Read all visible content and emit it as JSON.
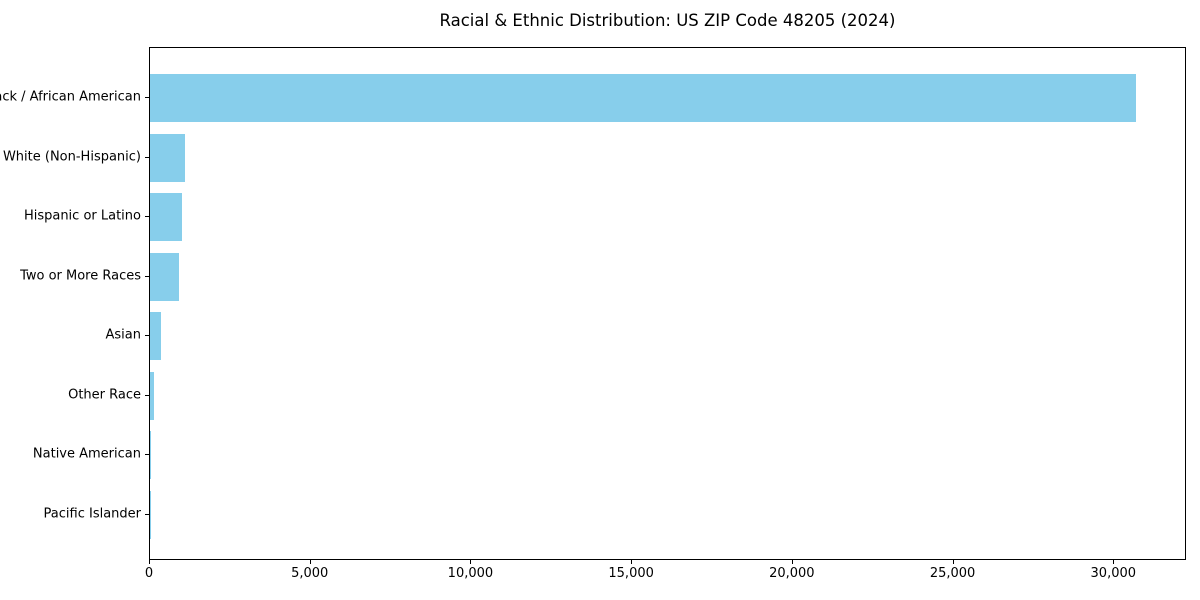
{
  "chart_data": {
    "type": "bar",
    "orientation": "horizontal",
    "title": "Racial & Ethnic Distribution: US ZIP Code 48205 (2024)",
    "categories": [
      "Black / African American",
      "White (Non-Hispanic)",
      "Hispanic or Latino",
      "Two or More Races",
      "Asian",
      "Other Race",
      "Native American",
      "Pacific Islander"
    ],
    "values": [
      30670,
      1100,
      985,
      910,
      340,
      135,
      40,
      10
    ],
    "xlabel": "",
    "ylabel": "",
    "xlim": [
      0,
      32200
    ],
    "x_ticks": [
      {
        "value": 0,
        "label": "0"
      },
      {
        "value": 5000,
        "label": "5,000"
      },
      {
        "value": 10000,
        "label": "10,000"
      },
      {
        "value": 15000,
        "label": "15,000"
      },
      {
        "value": 20000,
        "label": "20,000"
      },
      {
        "value": 25000,
        "label": "25,000"
      },
      {
        "value": 30000,
        "label": "30,000"
      }
    ],
    "grid": false,
    "legend": false,
    "bar_color": "#87ceeb",
    "axis_color": "#000000",
    "background_color": "#ffffff"
  }
}
